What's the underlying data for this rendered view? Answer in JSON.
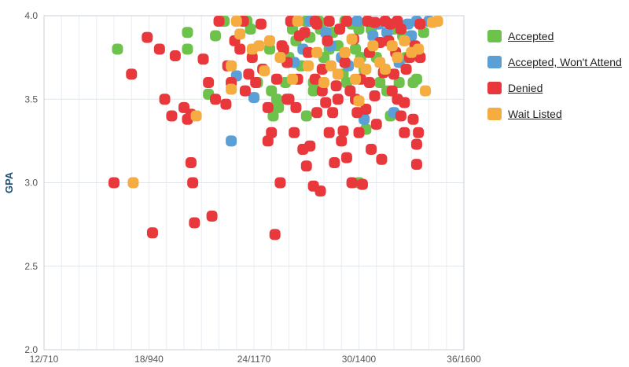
{
  "chart_data": {
    "type": "scatter",
    "title": "",
    "xlabel": "",
    "ylabel": "GPA",
    "x_ticks": [
      "12/710",
      "18/940",
      "24/1170",
      "30/1400",
      "36/1600"
    ],
    "x_tick_values": [
      12,
      18,
      24,
      30,
      36
    ],
    "xlim": [
      12,
      36
    ],
    "y_ticks": [
      "2.0",
      "2.5",
      "3.0",
      "3.5",
      "4.0"
    ],
    "ylim": [
      2.0,
      4.0
    ],
    "grid": true,
    "legend_position": "right",
    "series": [
      {
        "name": "Accepted",
        "color": "#6cc24a",
        "points": [
          [
            16.2,
            3.8
          ],
          [
            20.2,
            3.9
          ],
          [
            20.2,
            3.8
          ],
          [
            21.4,
            3.53
          ],
          [
            21.8,
            3.88
          ],
          [
            22.3,
            4.0
          ],
          [
            23.6,
            3.98
          ],
          [
            23.8,
            3.92
          ],
          [
            24.2,
            3.6
          ],
          [
            24.9,
            3.8
          ],
          [
            25.0,
            3.55
          ],
          [
            25.1,
            3.4
          ],
          [
            25.3,
            3.5
          ],
          [
            25.4,
            3.45
          ],
          [
            25.8,
            3.6
          ],
          [
            26.0,
            3.75
          ],
          [
            26.2,
            3.92
          ],
          [
            26.4,
            3.85
          ],
          [
            26.7,
            3.7
          ],
          [
            27.0,
            3.98
          ],
          [
            27.0,
            3.4
          ],
          [
            27.2,
            3.87
          ],
          [
            27.4,
            3.6
          ],
          [
            27.4,
            3.55
          ],
          [
            27.7,
            4.0
          ],
          [
            27.8,
            3.92
          ],
          [
            28.0,
            3.75
          ],
          [
            28.3,
            3.8
          ],
          [
            28.5,
            3.9
          ],
          [
            28.8,
            3.82
          ],
          [
            29.1,
            3.65
          ],
          [
            29.3,
            3.6
          ],
          [
            29.6,
            3.95
          ],
          [
            29.8,
            3.8
          ],
          [
            30.0,
            3.92
          ],
          [
            30.1,
            3.75
          ],
          [
            30.3,
            3.68
          ],
          [
            30.4,
            3.32
          ],
          [
            30.7,
            3.92
          ],
          [
            31.0,
            3.75
          ],
          [
            31.2,
            3.6
          ],
          [
            31.6,
            3.55
          ],
          [
            31.8,
            3.4
          ],
          [
            32.0,
            3.92
          ],
          [
            32.3,
            3.6
          ],
          [
            32.5,
            3.88
          ],
          [
            32.7,
            3.75
          ],
          [
            33.1,
            3.6
          ],
          [
            33.3,
            3.62
          ],
          [
            33.7,
            3.9
          ],
          [
            30.0,
            3.0
          ],
          [
            29.2,
            3.97
          ]
        ]
      },
      {
        "name": "Accepted, Won't Attend",
        "color": "#5a9fd6",
        "points": [
          [
            22.7,
            3.25
          ],
          [
            23.0,
            3.64
          ],
          [
            24.0,
            3.51
          ],
          [
            26.3,
            3.72
          ],
          [
            26.8,
            3.8
          ],
          [
            27.2,
            4.0
          ],
          [
            28.1,
            3.9
          ],
          [
            28.4,
            3.82
          ],
          [
            29.0,
            3.75
          ],
          [
            29.4,
            3.7
          ],
          [
            29.9,
            4.0
          ],
          [
            30.3,
            3.38
          ],
          [
            30.8,
            3.88
          ],
          [
            31.1,
            3.95
          ],
          [
            31.6,
            3.9
          ],
          [
            32.0,
            3.42
          ],
          [
            32.3,
            3.72
          ],
          [
            32.8,
            3.95
          ],
          [
            33.0,
            3.88
          ],
          [
            33.3,
            4.0
          ],
          [
            34.0,
            4.0
          ]
        ]
      },
      {
        "name": "Denied",
        "color": "#e8383c",
        "points": [
          [
            16.0,
            3.0
          ],
          [
            17.0,
            3.65
          ],
          [
            17.9,
            3.87
          ],
          [
            18.2,
            2.7
          ],
          [
            18.6,
            3.8
          ],
          [
            18.9,
            3.5
          ],
          [
            19.3,
            3.4
          ],
          [
            19.5,
            3.76
          ],
          [
            20.0,
            3.45
          ],
          [
            20.2,
            3.38
          ],
          [
            20.4,
            3.12
          ],
          [
            20.4,
            3.41
          ],
          [
            20.5,
            3.0
          ],
          [
            20.6,
            2.76
          ],
          [
            21.1,
            3.74
          ],
          [
            21.4,
            3.6
          ],
          [
            21.6,
            2.8
          ],
          [
            21.8,
            3.5
          ],
          [
            22.0,
            4.0
          ],
          [
            22.4,
            3.47
          ],
          [
            22.5,
            3.7
          ],
          [
            22.9,
            3.85
          ],
          [
            23.2,
            3.8
          ],
          [
            23.4,
            4.0
          ],
          [
            23.7,
            3.65
          ],
          [
            24.1,
            3.6
          ],
          [
            24.5,
            3.68
          ],
          [
            24.8,
            3.25
          ],
          [
            25.0,
            3.3
          ],
          [
            25.2,
            2.69
          ],
          [
            25.5,
            3.0
          ],
          [
            25.7,
            3.8
          ],
          [
            25.9,
            3.5
          ],
          [
            26.3,
            3.3
          ],
          [
            26.6,
            3.88
          ],
          [
            26.8,
            3.2
          ],
          [
            27.0,
            3.1
          ],
          [
            27.2,
            3.22
          ],
          [
            27.4,
            2.98
          ],
          [
            27.5,
            3.62
          ],
          [
            27.8,
            2.95
          ],
          [
            27.9,
            3.55
          ],
          [
            28.1,
            3.48
          ],
          [
            28.3,
            3.3
          ],
          [
            28.6,
            3.12
          ],
          [
            28.8,
            3.5
          ],
          [
            29.1,
            3.31
          ],
          [
            29.3,
            3.15
          ],
          [
            29.6,
            3.0
          ],
          [
            29.8,
            3.5
          ],
          [
            30.0,
            3.3
          ],
          [
            30.2,
            2.99
          ],
          [
            30.4,
            3.44
          ],
          [
            30.6,
            3.6
          ],
          [
            30.9,
            3.52
          ],
          [
            31.3,
            3.14
          ],
          [
            31.7,
            3.85
          ],
          [
            32.0,
            3.65
          ],
          [
            32.2,
            3.5
          ],
          [
            32.4,
            3.4
          ],
          [
            32.6,
            3.3
          ],
          [
            32.9,
            3.75
          ],
          [
            33.1,
            3.38
          ],
          [
            33.3,
            3.23
          ],
          [
            33.3,
            3.11
          ],
          [
            33.5,
            3.75
          ],
          [
            24.4,
            3.95
          ],
          [
            25.6,
            3.82
          ],
          [
            26.1,
            4.0
          ],
          [
            26.5,
            3.62
          ],
          [
            27.1,
            3.78
          ],
          [
            27.6,
            3.95
          ],
          [
            27.9,
            3.68
          ],
          [
            28.2,
            3.85
          ],
          [
            28.7,
            3.58
          ],
          [
            28.9,
            3.92
          ],
          [
            29.2,
            3.72
          ],
          [
            29.5,
            3.55
          ],
          [
            29.7,
            3.86
          ],
          [
            30.1,
            3.62
          ],
          [
            30.6,
            3.78
          ],
          [
            30.9,
            3.96
          ],
          [
            31.2,
            3.84
          ],
          [
            31.4,
            3.66
          ],
          [
            31.8,
            3.95
          ],
          [
            32.1,
            3.78
          ],
          [
            32.4,
            3.92
          ],
          [
            32.7,
            3.68
          ],
          [
            33.2,
            3.82
          ],
          [
            33.5,
            3.95
          ],
          [
            32.2,
            4.0
          ],
          [
            31.5,
            4.0
          ],
          [
            30.5,
            4.0
          ],
          [
            29.3,
            4.0
          ],
          [
            28.3,
            4.0
          ],
          [
            27.5,
            4.0
          ],
          [
            26.9,
            3.9
          ],
          [
            25.9,
            3.72
          ],
          [
            25.3,
            3.62
          ],
          [
            24.8,
            3.45
          ],
          [
            23.9,
            3.75
          ],
          [
            23.5,
            3.55
          ],
          [
            22.7,
            3.6
          ],
          [
            26.4,
            3.45
          ],
          [
            27.6,
            3.42
          ],
          [
            28.5,
            3.42
          ],
          [
            29.9,
            3.42
          ],
          [
            31.0,
            3.35
          ],
          [
            31.9,
            3.55
          ],
          [
            32.6,
            3.48
          ],
          [
            33.4,
            3.3
          ],
          [
            26.0,
            3.5
          ],
          [
            29.0,
            3.25
          ],
          [
            30.7,
            3.2
          ]
        ]
      },
      {
        "name": "Wait Listed",
        "color": "#f5ad42",
        "points": [
          [
            17.1,
            3.0
          ],
          [
            20.7,
            3.4
          ],
          [
            22.7,
            3.7
          ],
          [
            23.2,
            3.89
          ],
          [
            23.9,
            3.8
          ],
          [
            24.6,
            3.67
          ],
          [
            24.9,
            3.85
          ],
          [
            25.5,
            3.75
          ],
          [
            26.2,
            3.62
          ],
          [
            26.5,
            4.0
          ],
          [
            27.1,
            3.7
          ],
          [
            27.6,
            3.78
          ],
          [
            28.0,
            3.6
          ],
          [
            28.4,
            3.7
          ],
          [
            28.8,
            3.65
          ],
          [
            29.2,
            3.78
          ],
          [
            29.6,
            3.86
          ],
          [
            30.0,
            3.72
          ],
          [
            30.0,
            3.49
          ],
          [
            30.4,
            3.68
          ],
          [
            30.8,
            3.82
          ],
          [
            31.2,
            3.72
          ],
          [
            31.5,
            3.68
          ],
          [
            31.9,
            3.82
          ],
          [
            32.2,
            3.75
          ],
          [
            32.6,
            3.85
          ],
          [
            33.0,
            3.78
          ],
          [
            33.4,
            3.8
          ],
          [
            33.8,
            3.55
          ],
          [
            34.2,
            3.96
          ],
          [
            34.5,
            3.97
          ],
          [
            23.0,
            4.0
          ],
          [
            22.7,
            3.56
          ],
          [
            24.3,
            3.82
          ],
          [
            29.8,
            3.62
          ]
        ]
      }
    ]
  }
}
